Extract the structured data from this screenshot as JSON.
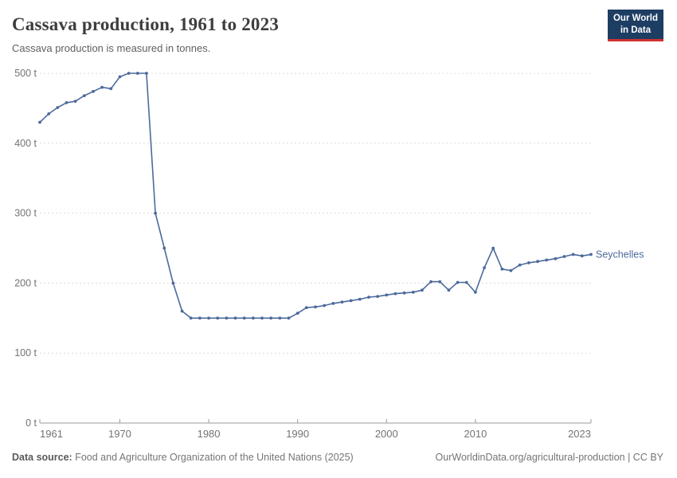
{
  "header": {
    "title": "Cassava production, 1961 to 2023",
    "subtitle": "Cassava production is measured in tonnes.",
    "logo": {
      "line1": "Our World",
      "line2": "in Data"
    }
  },
  "chart_data": {
    "type": "line",
    "title": "Cassava production, 1961 to 2023",
    "xlabel": "",
    "ylabel": "tonnes",
    "unit_suffix": " t",
    "xlim": [
      1961,
      2023
    ],
    "ylim": [
      0,
      500
    ],
    "x_ticks": [
      1961,
      1970,
      1980,
      1990,
      2000,
      2010,
      2023
    ],
    "y_ticks": [
      0,
      100,
      200,
      300,
      400,
      500
    ],
    "grid": "horizontal dashed gridlines",
    "legend_position": "right end of line",
    "series": [
      {
        "name": "Seychelles",
        "color": "#4C6A9C",
        "x": [
          1961,
          1962,
          1963,
          1964,
          1965,
          1966,
          1967,
          1968,
          1969,
          1970,
          1971,
          1972,
          1973,
          1974,
          1975,
          1976,
          1977,
          1978,
          1979,
          1980,
          1981,
          1982,
          1983,
          1984,
          1985,
          1986,
          1987,
          1988,
          1989,
          1990,
          1991,
          1992,
          1993,
          1994,
          1995,
          1996,
          1997,
          1998,
          1999,
          2000,
          2001,
          2002,
          2003,
          2004,
          2005,
          2006,
          2007,
          2008,
          2009,
          2010,
          2011,
          2012,
          2013,
          2014,
          2015,
          2016,
          2017,
          2018,
          2019,
          2020,
          2021,
          2022,
          2023
        ],
        "values": [
          430,
          442,
          451,
          458,
          460,
          468,
          474,
          480,
          478,
          495,
          500,
          500,
          500,
          300,
          250,
          200,
          160,
          150,
          150,
          150,
          150,
          150,
          150,
          150,
          150,
          150,
          150,
          150,
          150,
          157,
          165,
          166,
          168,
          171,
          173,
          175,
          177,
          180,
          181,
          183,
          185,
          186,
          187,
          190,
          202,
          202,
          190,
          201,
          201,
          187,
          222,
          250,
          220,
          218,
          226,
          229,
          231,
          233,
          235,
          238,
          241,
          239,
          241
        ]
      }
    ]
  },
  "colors": {
    "line": "#4C6A9C",
    "grid": "#dddddd",
    "axis": "#999999",
    "tick_text": "#737373",
    "logo_bg": "#1d3d63",
    "logo_red": "#d0312f"
  },
  "footer": {
    "datasource_label": "Data source:",
    "datasource_text": " Food and Agriculture Organization of the United Nations (2025)",
    "credit": "OurWorldinData.org/agricultural-production | CC BY"
  }
}
